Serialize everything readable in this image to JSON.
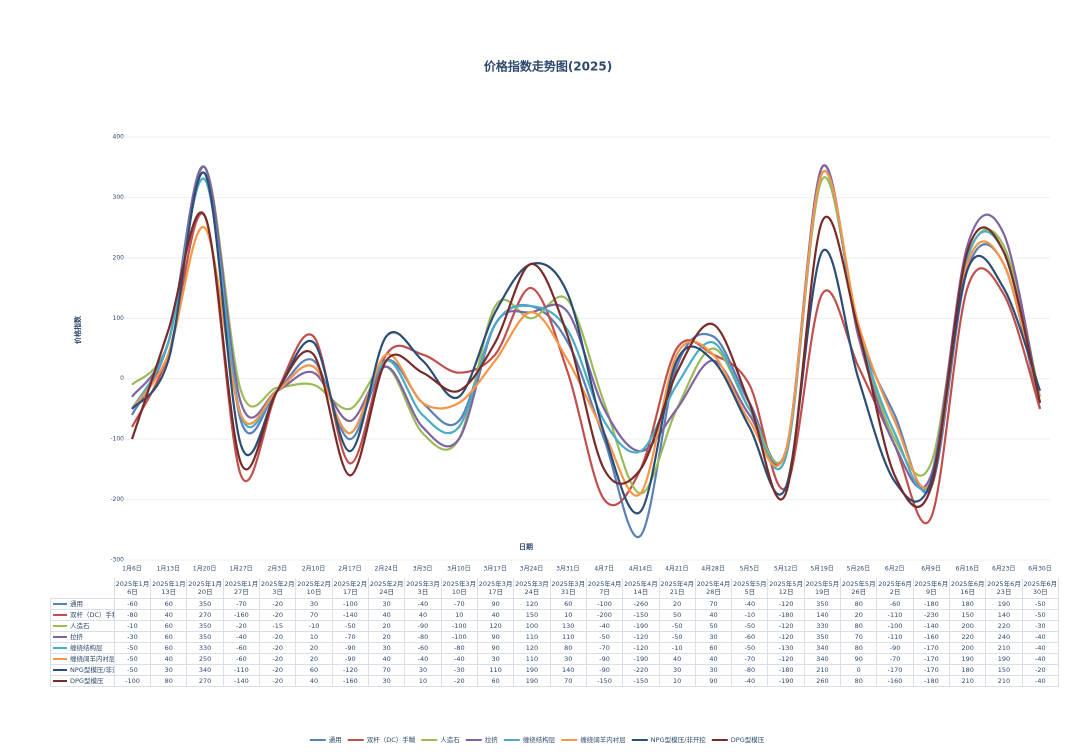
{
  "chart_data": {
    "type": "line",
    "title": "价格指数走势图(2025)",
    "x_title": "日期",
    "y_title": "价格指数",
    "categories": [
      "2025年1月6日",
      "2025年1月13日",
      "2025年1月20日",
      "2025年1月27日",
      "2025年2月3日",
      "2025年2月10日",
      "2025年2月17日",
      "2025年2月24日",
      "2025年3月3日",
      "2025年3月10日",
      "2025年3月17日",
      "2025年3月24日",
      "2025年3月31日",
      "2025年4月7日",
      "2025年4月14日",
      "2025年4月21日",
      "2025年4月28日",
      "2025年5月5日",
      "2025年5月12日",
      "2025年5月19日",
      "2025年5月26日",
      "2025年6月2日",
      "2025年6月9日",
      "2025年6月16日",
      "2025年6月23日",
      "2025年6月30日"
    ],
    "x_tick_labels": [
      "1月6日",
      "1月13日",
      "1月20日",
      "1月27日",
      "2月3日",
      "2月10日",
      "2月17日",
      "2月24日",
      "3月3日",
      "3月10日",
      "3月17日",
      "3月24日",
      "3月31日",
      "4月7日",
      "4月14日",
      "4月21日",
      "4月28日",
      "5月5日",
      "5月12日",
      "5月19日",
      "5月26日",
      "6月2日",
      "6月9日",
      "6月16日",
      "6月23日",
      "6月30日"
    ],
    "ylim": [
      -300,
      400
    ],
    "yticks": [
      -300,
      -200,
      -100,
      0,
      100,
      200,
      300,
      400
    ],
    "grid": true,
    "legend": "bottom",
    "series": [
      {
        "name": "通用",
        "color": "#5b80b8",
        "values": [
          -60,
          60,
          350,
          -70,
          -20,
          30,
          -100,
          30,
          -40,
          -70,
          90,
          120,
          60,
          -100,
          -260,
          20,
          70,
          -40,
          -120,
          350,
          80,
          -60,
          -180,
          180,
          190,
          -50
        ]
      },
      {
        "name": "双杆（DC）手糊",
        "color": "#c0504d",
        "values": [
          -80,
          40,
          270,
          -160,
          -20,
          70,
          -140,
          40,
          40,
          10,
          40,
          150,
          10,
          -200,
          -150,
          50,
          40,
          -10,
          -180,
          140,
          20,
          -110,
          -230,
          150,
          140,
          -50
        ]
      },
      {
        "name": "人造石",
        "color": "#9bbb59",
        "values": [
          -10,
          60,
          350,
          -20,
          -15,
          -10,
          -50,
          20,
          -90,
          -100,
          120,
          100,
          130,
          -40,
          -190,
          -50,
          50,
          -50,
          -120,
          330,
          80,
          -100,
          -140,
          200,
          220,
          -30
        ]
      },
      {
        "name": "拉挤",
        "color": "#8064a2",
        "values": [
          -30,
          60,
          350,
          -40,
          -20,
          10,
          -70,
          20,
          -80,
          -100,
          90,
          110,
          110,
          -50,
          -120,
          -50,
          30,
          -60,
          -120,
          350,
          70,
          -110,
          -160,
          220,
          240,
          -40
        ]
      },
      {
        "name": "缠绕结构层",
        "color": "#4bacc6",
        "values": [
          -50,
          60,
          330,
          -60,
          -20,
          20,
          -90,
          30,
          -60,
          -80,
          90,
          120,
          80,
          -70,
          -120,
          -10,
          60,
          -50,
          -130,
          340,
          80,
          -90,
          -170,
          200,
          210,
          -40
        ]
      },
      {
        "name": "缠绕阔羊内衬层",
        "color": "#f79646",
        "values": [
          -50,
          40,
          250,
          -60,
          -20,
          20,
          -90,
          40,
          -40,
          -40,
          30,
          110,
          30,
          -90,
          -190,
          40,
          40,
          -70,
          -120,
          340,
          90,
          -70,
          -170,
          190,
          190,
          -40
        ]
      },
      {
        "name": "NPG型模压/非开挖",
        "color": "#2c4d75",
        "values": [
          -50,
          30,
          340,
          -110,
          -20,
          60,
          -120,
          70,
          30,
          -30,
          110,
          190,
          140,
          -90,
          -220,
          30,
          30,
          -80,
          -180,
          210,
          0,
          -170,
          -170,
          180,
          150,
          -20
        ]
      },
      {
        "name": "DPG型模压",
        "color": "#772c2a",
        "values": [
          -100,
          80,
          270,
          -140,
          -20,
          40,
          -160,
          30,
          10,
          -20,
          60,
          190,
          70,
          -150,
          -150,
          10,
          90,
          -40,
          -190,
          260,
          80,
          -160,
          -180,
          210,
          210,
          -40
        ]
      }
    ]
  }
}
